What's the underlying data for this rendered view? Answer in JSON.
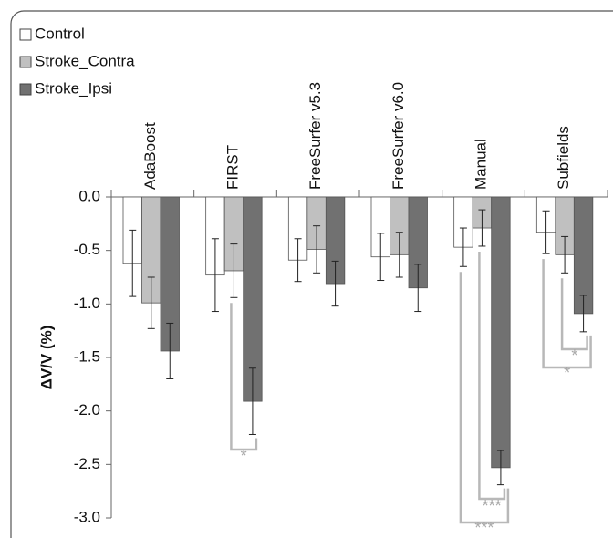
{
  "chart_data": {
    "type": "bar",
    "y_label": "ΔV/V (%)",
    "categories": [
      "AdaBoost",
      "FIRST",
      "FreeSurfer v5.3",
      "FreeSurfer v6.0",
      "Manual",
      "Subfields"
    ],
    "series": [
      {
        "name": "Control",
        "color": "#ffffff",
        "values": [
          -0.62,
          -0.73,
          -0.59,
          -0.56,
          -0.47,
          -0.33
        ],
        "errors": [
          0.31,
          0.34,
          0.2,
          0.22,
          0.18,
          0.2
        ]
      },
      {
        "name": "Stroke_Contra",
        "color": "#c0c0c0",
        "values": [
          -0.99,
          -0.69,
          -0.49,
          -0.54,
          -0.29,
          -0.54
        ],
        "errors": [
          0.24,
          0.25,
          0.22,
          0.21,
          0.17,
          0.17
        ]
      },
      {
        "name": "Stroke_Ipsi",
        "color": "#717171",
        "values": [
          -1.44,
          -1.91,
          -0.81,
          -0.85,
          -2.53,
          -1.09
        ],
        "errors": [
          0.26,
          0.31,
          0.21,
          0.22,
          0.16,
          0.17
        ]
      }
    ],
    "ylim": [
      -3.0,
      0.0
    ],
    "yticks": [
      {
        "value": 0,
        "label": "0.0"
      },
      -0.5,
      {
        "value": -1,
        "label": "-1.0"
      },
      -1.5,
      {
        "value": -2,
        "label": "-2.0"
      },
      -2.5,
      {
        "value": -3,
        "label": "-3.0"
      }
    ],
    "legend": "top-left",
    "annotations": [
      "*",
      "***",
      "***",
      "*",
      "*"
    ]
  }
}
